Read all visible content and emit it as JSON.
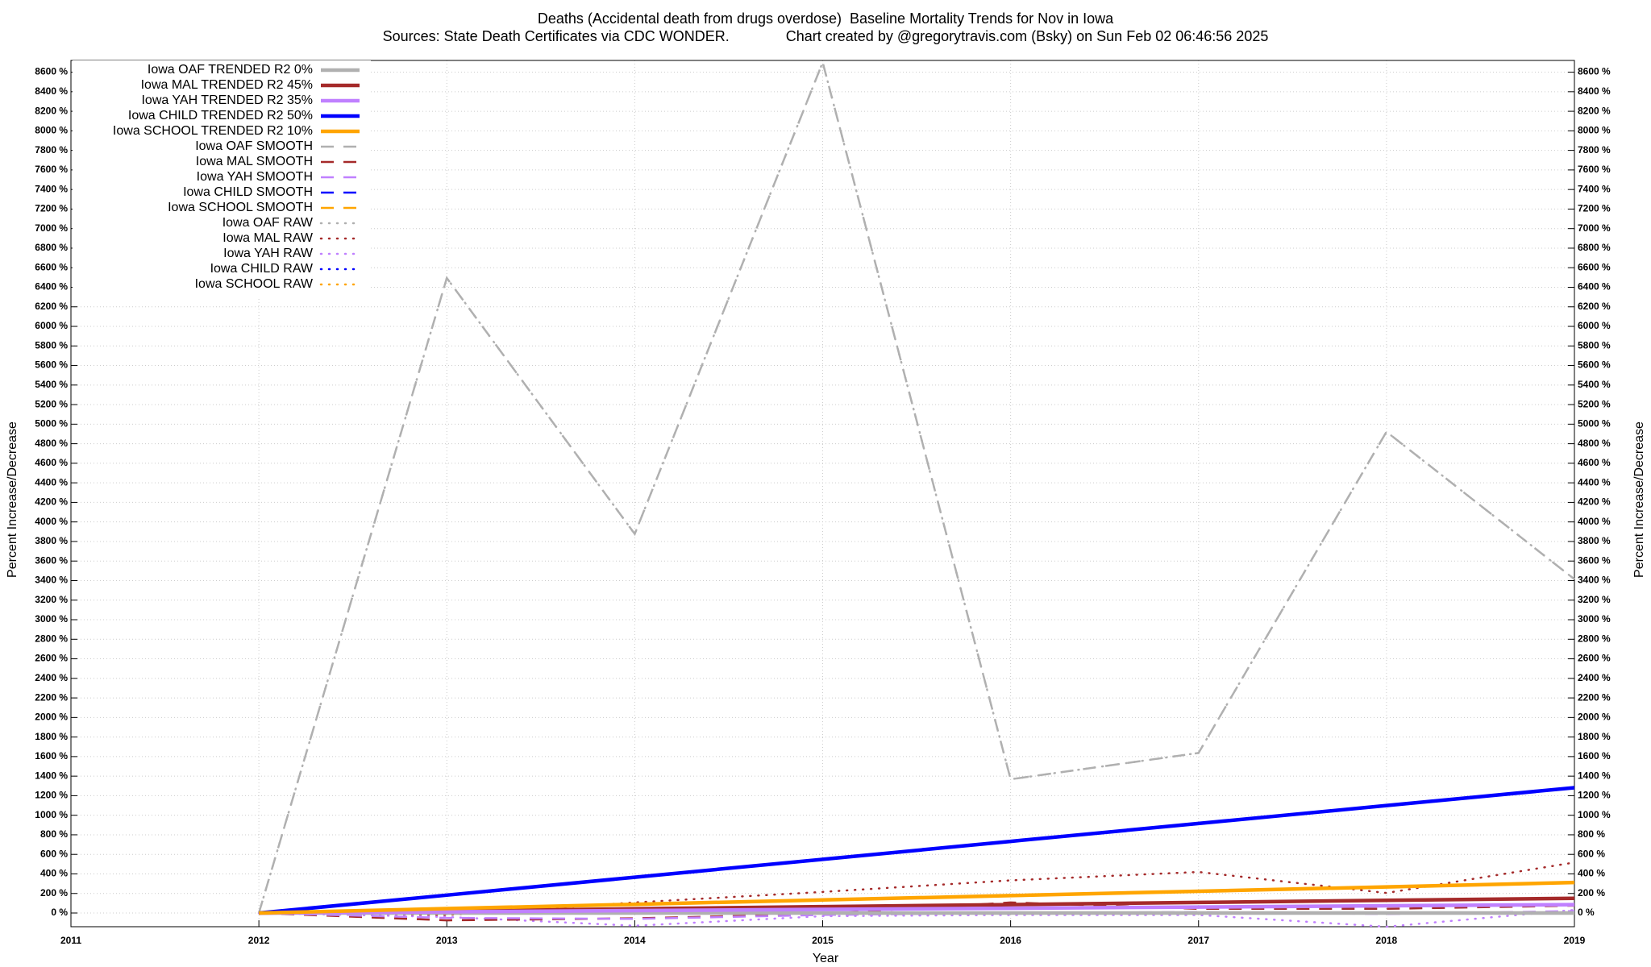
{
  "chart_data": {
    "type": "line",
    "title": "Deaths (Accidental death from drugs overdose)  Baseline Mortality Trends for Nov in Iowa",
    "subtitle": "Sources: State Death Certificates via CDC WONDER.              Chart created by @gregorytravis.com (Bsky) on Sun Feb 02 06:46:56 2025",
    "x_label": "Year",
    "y_label": "Percent Increase/Decrease",
    "x": [
      2012,
      2013,
      2014,
      2015,
      2016,
      2017,
      2018,
      2019
    ],
    "xlim": [
      2011,
      2019
    ],
    "xticks": [
      2011,
      2012,
      2013,
      2014,
      2015,
      2016,
      2017,
      2018,
      2019
    ],
    "ylim": [
      -140,
      8720
    ],
    "yticks": [
      {
        "value": 0,
        "label": "0 %"
      },
      {
        "value": 200,
        "label": "200 %"
      },
      {
        "value": 400,
        "label": "400 %"
      },
      {
        "value": 600,
        "label": "600 %"
      },
      {
        "value": 800,
        "label": "800 %"
      },
      {
        "value": 1000,
        "label": "1000 %"
      },
      {
        "value": 1200,
        "label": "1200 %"
      },
      {
        "value": 1400,
        "label": "1400 %"
      },
      {
        "value": 1600,
        "label": "1600 %"
      },
      {
        "value": 1800,
        "label": "1800 %"
      },
      {
        "value": 2000,
        "label": "2000 %"
      },
      {
        "value": 2200,
        "label": "2200 %"
      },
      {
        "value": 2400,
        "label": "2400 %"
      },
      {
        "value": 2600,
        "label": "2600 %"
      },
      {
        "value": 2800,
        "label": "2800 %"
      },
      {
        "value": 3000,
        "label": "3000 %"
      },
      {
        "value": 3200,
        "label": "3200 %"
      },
      {
        "value": 3400,
        "label": "3400 %"
      },
      {
        "value": 3600,
        "label": "3600 %"
      },
      {
        "value": 3800,
        "label": "3800 %"
      },
      {
        "value": 4000,
        "label": "4000 %"
      },
      {
        "value": 4200,
        "label": "4200 %"
      },
      {
        "value": 4400,
        "label": "4400 %"
      },
      {
        "value": 4600,
        "label": "4600 %"
      },
      {
        "value": 4800,
        "label": "4800 %"
      },
      {
        "value": 5000,
        "label": "5000 %"
      },
      {
        "value": 5200,
        "label": "5200 %"
      },
      {
        "value": 5400,
        "label": "5400 %"
      },
      {
        "value": 5600,
        "label": "5600 %"
      },
      {
        "value": 5800,
        "label": "5800 %"
      },
      {
        "value": 6000,
        "label": "6000 %"
      },
      {
        "value": 6200,
        "label": "6200 %"
      },
      {
        "value": 6400,
        "label": "6400 %"
      },
      {
        "value": 6600,
        "label": "6600 %"
      },
      {
        "value": 6800,
        "label": "6800 %"
      },
      {
        "value": 7000,
        "label": "7000 %"
      },
      {
        "value": 7200,
        "label": "7200 %"
      },
      {
        "value": 7400,
        "label": "7400 %"
      },
      {
        "value": 7600,
        "label": "7600 %"
      },
      {
        "value": 7800,
        "label": "7800 %"
      },
      {
        "value": 8000,
        "label": "8000 %"
      },
      {
        "value": 8200,
        "label": "8200 %"
      },
      {
        "value": 8400,
        "label": "8400 %"
      },
      {
        "value": 8600,
        "label": "8600 %"
      }
    ],
    "grid": true,
    "legend": "top-left",
    "series": [
      {
        "name": "Iowa OAF TRENDED R2  0%",
        "color": "#b0b0b0",
        "style": "trend",
        "values": [
          0,
          0,
          0,
          0,
          0,
          0,
          0,
          0
        ]
      },
      {
        "name": "Iowa MAL TRENDED R2  45%",
        "color": "#a52a2a",
        "style": "trend",
        "values": [
          0,
          22,
          43,
          65,
          86,
          108,
          130,
          151
        ]
      },
      {
        "name": "Iowa YAH TRENDED R2  35%",
        "color": "#c080ff",
        "style": "trend",
        "values": [
          0,
          12,
          25,
          37,
          49,
          61,
          74,
          86
        ]
      },
      {
        "name": "Iowa CHILD TRENDED R2  50%",
        "color": "#0000ff",
        "style": "trend",
        "values": [
          0,
          183,
          366,
          549,
          733,
          916,
          1099,
          1282
        ]
      },
      {
        "name": "Iowa SCHOOL TRENDED R2  10%",
        "color": "#ffa500",
        "style": "trend",
        "values": [
          0,
          45,
          89,
          134,
          178,
          223,
          267,
          312
        ]
      },
      {
        "name": "Iowa OAF SMOOTH",
        "color": "#b0b0b0",
        "style": "smooth",
        "values": [
          0,
          6495,
          3877,
          8700,
          1368,
          1637,
          4922,
          3414
        ]
      },
      {
        "name": "Iowa MAL SMOOTH",
        "color": "#a52a2a",
        "style": "smooth",
        "values": [
          0,
          -75,
          -54,
          -10,
          108,
          43,
          43,
          75
        ]
      },
      {
        "name": "Iowa YAH SMOOTH",
        "color": "#c080ff",
        "style": "smooth",
        "values": [
          0,
          -50,
          -60,
          -20,
          0,
          10,
          -10,
          20
        ]
      },
      {
        "name": "Iowa CHILD SMOOTH",
        "color": "#0000ff",
        "style": "smooth",
        "values": [
          null,
          null,
          null,
          null,
          null,
          null,
          null,
          null
        ]
      },
      {
        "name": "Iowa SCHOOL SMOOTH",
        "color": "#ffa500",
        "style": "smooth",
        "values": [
          null,
          null,
          null,
          null,
          null,
          null,
          null,
          null
        ]
      },
      {
        "name": "Iowa OAF RAW",
        "color": "#b0b0b0",
        "style": "raw",
        "values": [
          0,
          6495,
          3877,
          8700,
          1368,
          1637,
          4922,
          3414
        ]
      },
      {
        "name": "Iowa MAL RAW",
        "color": "#a52a2a",
        "style": "raw",
        "values": [
          0,
          -20,
          108,
          216,
          334,
          420,
          205,
          517
        ]
      },
      {
        "name": "Iowa YAH RAW",
        "color": "#c080ff",
        "style": "raw",
        "values": [
          0,
          -40,
          -130,
          -32,
          -20,
          -20,
          -140,
          32
        ]
      },
      {
        "name": "Iowa CHILD RAW",
        "color": "#0000ff",
        "style": "raw",
        "values": [
          null,
          null,
          null,
          null,
          null,
          null,
          null,
          null
        ]
      },
      {
        "name": "Iowa SCHOOL RAW",
        "color": "#ffa500",
        "style": "raw",
        "values": [
          null,
          null,
          null,
          null,
          null,
          null,
          null,
          null
        ]
      }
    ]
  }
}
